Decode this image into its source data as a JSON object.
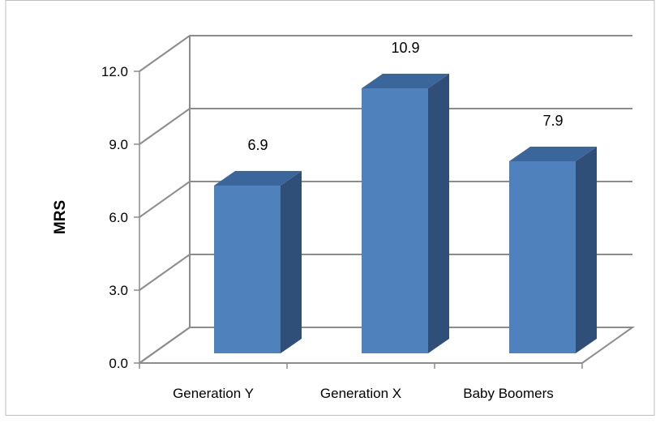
{
  "chart_data": {
    "type": "bar",
    "style": "3d-column",
    "categories": [
      "Generation Y",
      "Generation X",
      "Baby Boomers"
    ],
    "values": [
      6.9,
      10.9,
      7.9
    ],
    "value_labels": [
      "6.9",
      "10.9",
      "7.9"
    ],
    "ylabel": "MRS",
    "ylim": [
      0,
      12
    ],
    "yticks": [
      0,
      3,
      6,
      9,
      12
    ],
    "ytick_labels": [
      "0.0",
      "3.0",
      "6.0",
      "9.0",
      "12.0"
    ],
    "grid": true,
    "legend": "none",
    "colors": {
      "bar_front": "#4f81bd",
      "bar_side": "#2f4f78",
      "bar_top": "#3b669b",
      "gridline": "#8c8c8c",
      "axis": "#8c8c8c"
    }
  }
}
